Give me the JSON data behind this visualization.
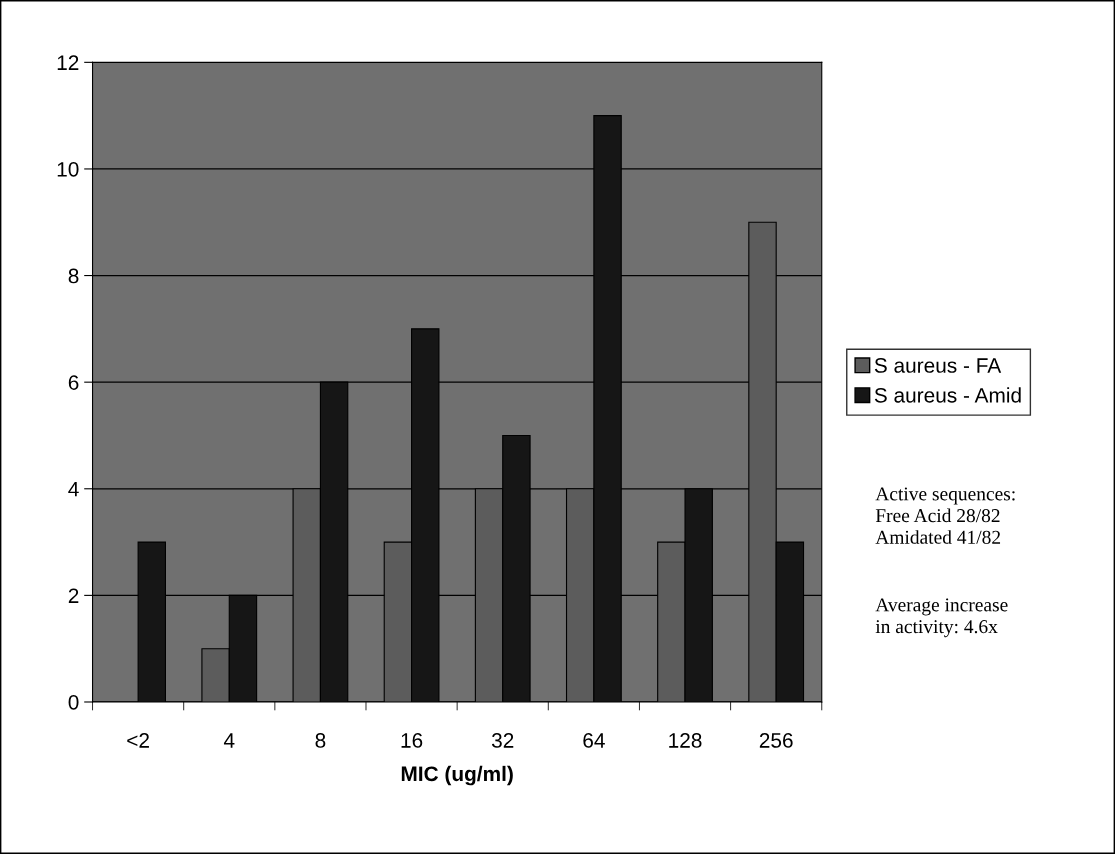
{
  "chart_data": {
    "type": "bar",
    "xlabel": "MIC (ug/ml)",
    "categories": [
      "<2",
      "4",
      "8",
      "16",
      "32",
      "64",
      "128",
      "256"
    ],
    "series": [
      {
        "name": "S aureus - FA",
        "color": "#5c5c5c",
        "values": [
          0,
          1,
          4,
          3,
          4,
          4,
          3,
          9
        ]
      },
      {
        "name": "S aureus - Amid",
        "color": "#161616",
        "values": [
          3,
          2,
          6,
          7,
          5,
          11,
          4,
          3
        ]
      }
    ],
    "ylim": [
      0,
      12
    ],
    "yticks": [
      0,
      2,
      4,
      6,
      8,
      10,
      12
    ],
    "grid": "y",
    "legend": "right",
    "annotations": [
      "Active sequences:\nFree Acid 28/82\nAmidated 41/82",
      "Average increase\nin activity: 4.6x"
    ]
  }
}
